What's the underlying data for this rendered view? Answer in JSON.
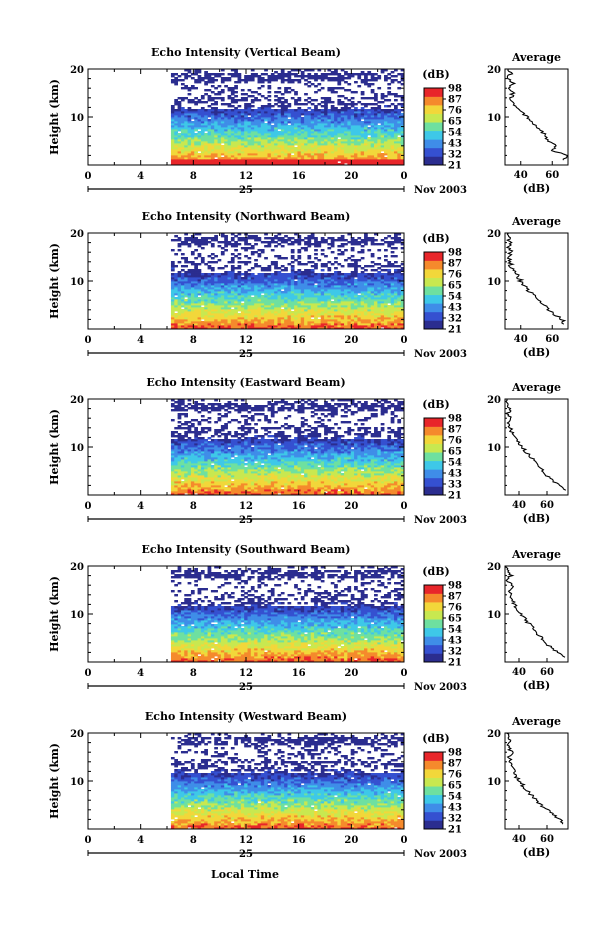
{
  "chart_data": [
    {
      "type": "heatmap",
      "title": "Echo Intensity (Vertical Beam)",
      "ylabel": "Height (km)",
      "ylim": [
        0,
        20
      ],
      "yticks": [
        "10",
        "20"
      ],
      "xlim": [
        0,
        24
      ],
      "xticks": [
        "0",
        "4",
        "8",
        "12",
        "16",
        "20",
        "0"
      ],
      "date_label": "25",
      "month_label": "Nov 2003",
      "data_start_hour": 6.3,
      "colorbar": {
        "unit": "(dB)",
        "levels": [
          "21",
          "32",
          "43",
          "54",
          "65",
          "76",
          "87",
          "98"
        ]
      },
      "profile": {
        "title": "Average",
        "xlabel": "(dB)",
        "xticks": [
          "40",
          "60"
        ],
        "xlim": [
          30,
          70
        ],
        "yticks": [
          "10",
          "20"
        ],
        "ylim": [
          0,
          20
        ],
        "heights": [
          1,
          2,
          3,
          4,
          5,
          6,
          7,
          8,
          9,
          10,
          11,
          12,
          13,
          14,
          15,
          16,
          17,
          18,
          19,
          20
        ],
        "values": [
          68,
          70,
          60,
          63,
          58,
          56,
          53,
          50,
          47,
          44,
          40,
          38,
          35,
          34,
          35,
          33,
          35,
          32,
          34,
          32
        ]
      }
    },
    {
      "type": "heatmap",
      "title": "Echo Intensity (Northward Beam)",
      "ylabel": "Height (km)",
      "ylim": [
        0,
        20
      ],
      "yticks": [
        "10",
        "20"
      ],
      "xlim": [
        0,
        24
      ],
      "xticks": [
        "0",
        "4",
        "8",
        "12",
        "16",
        "20",
        "0"
      ],
      "date_label": "25",
      "month_label": "Nov 2003",
      "data_start_hour": 6.3,
      "colorbar": {
        "unit": "(dB)",
        "levels": [
          "21",
          "32",
          "43",
          "54",
          "65",
          "76",
          "87",
          "98"
        ]
      },
      "profile": {
        "title": "Average",
        "xlabel": "(dB)",
        "xticks": [
          "40",
          "60"
        ],
        "xlim": [
          30,
          70
        ],
        "yticks": [
          "10",
          "20"
        ],
        "ylim": [
          0,
          20
        ],
        "heights": [
          1,
          2,
          3,
          4,
          5,
          6,
          7,
          8,
          9,
          10,
          11,
          12,
          13,
          14,
          15,
          16,
          17,
          18,
          19,
          20
        ],
        "values": [
          68,
          66,
          62,
          58,
          55,
          51,
          48,
          45,
          42,
          40,
          38,
          36,
          34,
          33,
          32,
          34,
          32,
          33,
          32,
          31
        ]
      }
    },
    {
      "type": "heatmap",
      "title": "Echo Intensity (Eastward Beam)",
      "ylabel": "Height (km)",
      "ylim": [
        0,
        20
      ],
      "yticks": [
        "10",
        "20"
      ],
      "xlim": [
        0,
        24
      ],
      "xticks": [
        "0",
        "4",
        "8",
        "12",
        "16",
        "20",
        "0"
      ],
      "date_label": "25",
      "month_label": "Nov 2003",
      "data_start_hour": 6.3,
      "colorbar": {
        "unit": "(dB)",
        "levels": [
          "21",
          "33",
          "43",
          "54",
          "65",
          "76",
          "87",
          "98"
        ]
      },
      "profile": {
        "title": "Average",
        "xlabel": "(dB)",
        "xticks": [
          "40",
          "60"
        ],
        "xlim": [
          30,
          75
        ],
        "yticks": [
          "10",
          "20"
        ],
        "ylim": [
          0,
          20
        ],
        "heights": [
          1,
          2,
          3,
          4,
          5,
          6,
          7,
          8,
          9,
          10,
          11,
          12,
          13,
          14,
          15,
          16,
          17,
          18,
          19,
          20
        ],
        "values": [
          72,
          68,
          64,
          60,
          57,
          54,
          51,
          48,
          45,
          42,
          39,
          37,
          35,
          34,
          33,
          35,
          32,
          34,
          32,
          31
        ]
      }
    },
    {
      "type": "heatmap",
      "title": "Echo Intensity (Southward Beam)",
      "ylabel": "Height (km)",
      "ylim": [
        0,
        20
      ],
      "yticks": [
        "10",
        "20"
      ],
      "xlim": [
        0,
        24
      ],
      "xticks": [
        "0",
        "4",
        "8",
        "12",
        "16",
        "20",
        "0"
      ],
      "date_label": "25",
      "month_label": "Nov 2003",
      "data_start_hour": 6.3,
      "colorbar": {
        "unit": "(dB)",
        "levels": [
          "21",
          "32",
          "43",
          "54",
          "65",
          "76",
          "87",
          "98"
        ]
      },
      "profile": {
        "title": "Average",
        "xlabel": "(dB)",
        "xticks": [
          "40",
          "60"
        ],
        "xlim": [
          30,
          75
        ],
        "yticks": [
          "10",
          "20"
        ],
        "ylim": [
          0,
          20
        ],
        "heights": [
          1,
          2,
          3,
          4,
          5,
          6,
          7,
          8,
          9,
          10,
          11,
          12,
          13,
          14,
          15,
          16,
          17,
          18,
          19,
          20
        ],
        "values": [
          72,
          68,
          63,
          59,
          56,
          53,
          50,
          47,
          44,
          41,
          39,
          37,
          35,
          34,
          33,
          35,
          32,
          34,
          32,
          31
        ]
      }
    },
    {
      "type": "heatmap",
      "title": "Echo Intensity (Westward Beam)",
      "ylabel": "Height (km)",
      "ylim": [
        0,
        20
      ],
      "yticks": [
        "10",
        "20"
      ],
      "xlim": [
        0,
        24
      ],
      "xticks": [
        "0",
        "4",
        "8",
        "12",
        "16",
        "20",
        "0"
      ],
      "date_label": "25",
      "month_label": "Nov 2003",
      "data_start_hour": 6.3,
      "colorbar": {
        "unit": "(dB)",
        "levels": [
          "21",
          "32",
          "43",
          "54",
          "65",
          "76",
          "87",
          "98"
        ]
      },
      "profile": {
        "title": "Average",
        "xlabel": "(dB)",
        "xticks": [
          "40",
          "60"
        ],
        "xlim": [
          30,
          75
        ],
        "yticks": [
          "10",
          "20"
        ],
        "ylim": [
          0,
          20
        ],
        "heights": [
          1,
          2,
          3,
          4,
          5,
          6,
          7,
          8,
          9,
          10,
          11,
          12,
          13,
          14,
          15,
          16,
          17,
          18,
          19,
          20
        ],
        "values": [
          72,
          69,
          64,
          60,
          56,
          52,
          49,
          46,
          43,
          40,
          38,
          37,
          35,
          34,
          33,
          35,
          32,
          34,
          32,
          31
        ]
      }
    }
  ],
  "bottom_xlabel": "Local Time",
  "palette": [
    "#2b2d8f",
    "#3550d0",
    "#3f8de8",
    "#3ec8e8",
    "#6ee0a0",
    "#c8e850",
    "#f2d73a",
    "#f58a2c",
    "#e8262a"
  ]
}
